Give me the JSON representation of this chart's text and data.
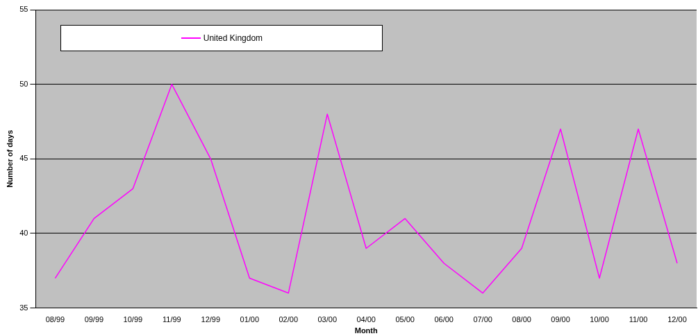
{
  "chart_data": {
    "type": "line",
    "xlabel": "Month",
    "ylabel": "Number of days",
    "categories": [
      "08/99",
      "09/99",
      "10/99",
      "11/99",
      "12/99",
      "01/00",
      "02/00",
      "03/00",
      "04/00",
      "05/00",
      "06/00",
      "07/00",
      "08/00",
      "09/00",
      "10/00",
      "11/00",
      "12/00"
    ],
    "series": [
      {
        "name": "United Kingdom",
        "color": "#ff00ff",
        "values": [
          37,
          41,
          43,
          50,
          45,
          37,
          36,
          48,
          39,
          41,
          38,
          36,
          39,
          47,
          37,
          47,
          38
        ]
      }
    ],
    "ylim": [
      35,
      55
    ],
    "yticks": [
      35,
      40,
      45,
      50,
      55
    ],
    "grid": "y",
    "legend": "top left",
    "marker": "none",
    "line_style": "solid"
  }
}
